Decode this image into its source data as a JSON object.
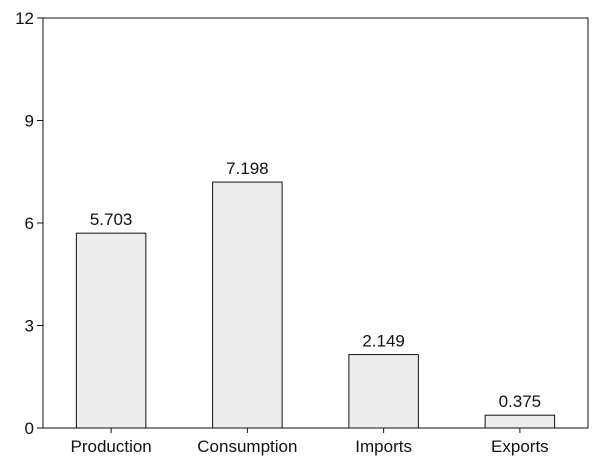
{
  "chart_data": {
    "type": "bar",
    "categories": [
      "Production",
      "Consumption",
      "Imports",
      "Exports"
    ],
    "values": [
      5.703,
      7.198,
      2.149,
      0.375
    ],
    "data_labels": [
      "5.703",
      "7.198",
      "2.149",
      "0.375"
    ],
    "title": "",
    "xlabel": "",
    "ylabel": "",
    "ylim": [
      0,
      12
    ],
    "yticks": [
      0,
      3,
      6,
      9,
      12
    ],
    "ytick_labels": [
      "0",
      "3",
      "6",
      "9",
      "12"
    ],
    "grid": false,
    "legend": "none",
    "bar_fill": "#ededed",
    "bar_stroke": "#111111",
    "axis_color": "#111111"
  }
}
